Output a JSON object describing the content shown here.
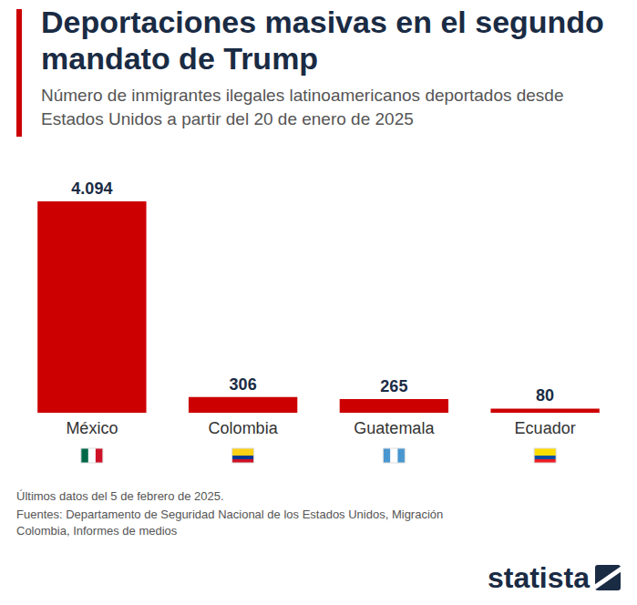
{
  "chart_data": {
    "type": "bar",
    "title": "Deportaciones masivas en el segundo mandato de Trump",
    "subtitle": "Número de inmigrantes ilegales latinoamericanos deportados desde Estados Unidos a partir del 20 de enero de 2025",
    "categories": [
      "México",
      "Colombia",
      "Guatemala",
      "Ecuador"
    ],
    "values": [
      4094,
      306,
      265,
      80
    ],
    "value_labels": [
      "4.094",
      "306",
      "265",
      "80"
    ],
    "data_labels": true,
    "color": "#cc0000",
    "ylim": [
      0,
      4094
    ],
    "tick_labels": false,
    "grid": false,
    "annotations": [
      "Últimos datos del 5 de febrero de 2025.",
      "Fuentes: Departamento de Seguridad Nacional de los Estados Unidos, Migración Colombia, Informes de medios",
      "statista"
    ]
  }
}
